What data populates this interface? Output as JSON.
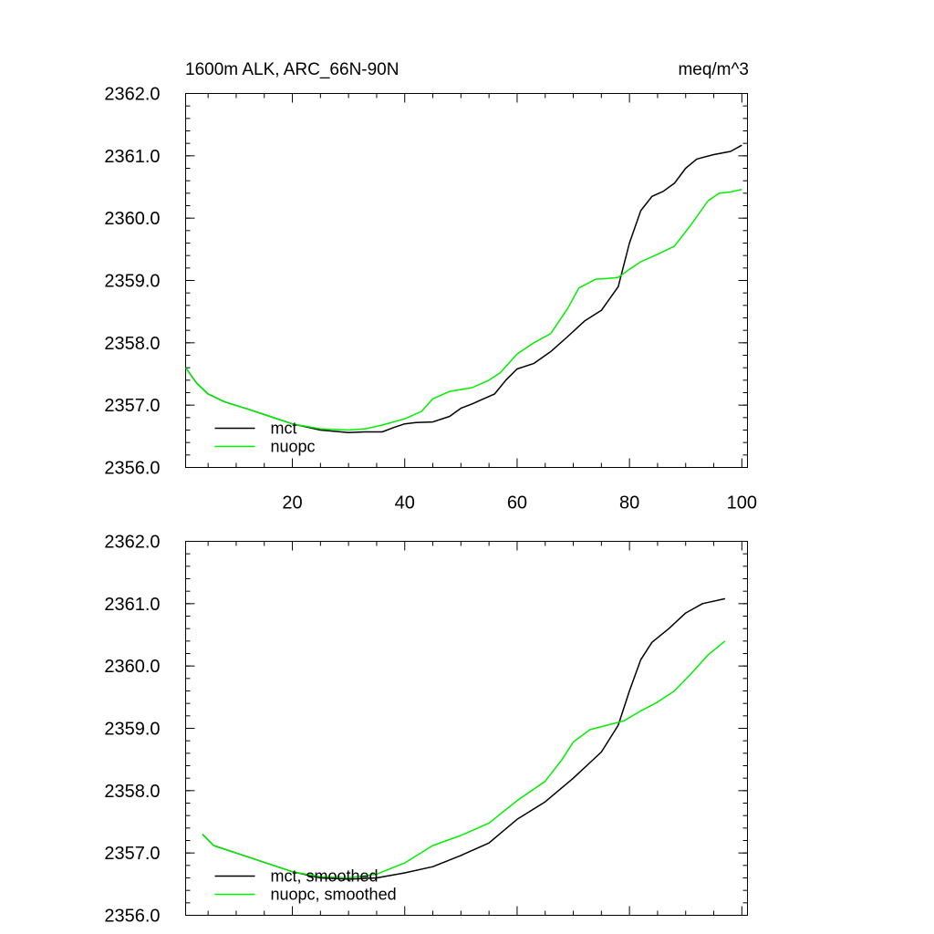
{
  "chart_data": [
    {
      "type": "line",
      "title_left": "1600m ALK, ARC_66N-90N",
      "title_right": "meq/m^3",
      "xlim": [
        1,
        101
      ],
      "ylim": [
        2356.0,
        2362.0
      ],
      "x_ticks": [
        20,
        40,
        60,
        80,
        100
      ],
      "x_tick_labels": [
        "20",
        "40",
        "60",
        "80",
        "100"
      ],
      "y_ticks": [
        2356.0,
        2357.0,
        2358.0,
        2359.0,
        2360.0,
        2361.0,
        2362.0
      ],
      "y_tick_labels": [
        "2356.0",
        "2357.0",
        "2358.0",
        "2359.0",
        "2360.0",
        "2361.0",
        "2362.0"
      ],
      "legend_position": "bottom-left",
      "series": [
        {
          "name": "mct",
          "color": "#000000",
          "points": [
            [
              1,
              2357.6
            ],
            [
              3,
              2357.35
            ],
            [
              5,
              2357.18
            ],
            [
              8,
              2357.05
            ],
            [
              12,
              2356.94
            ],
            [
              16,
              2356.82
            ],
            [
              20,
              2356.7
            ],
            [
              25,
              2356.6
            ],
            [
              30,
              2356.56
            ],
            [
              33,
              2356.57
            ],
            [
              36,
              2356.57
            ],
            [
              38,
              2356.64
            ],
            [
              40,
              2356.7
            ],
            [
              42,
              2356.72
            ],
            [
              45,
              2356.73
            ],
            [
              48,
              2356.82
            ],
            [
              50,
              2356.95
            ],
            [
              52,
              2357.02
            ],
            [
              54,
              2357.1
            ],
            [
              56,
              2357.18
            ],
            [
              58,
              2357.4
            ],
            [
              60,
              2357.58
            ],
            [
              63,
              2357.67
            ],
            [
              66,
              2357.86
            ],
            [
              69,
              2358.1
            ],
            [
              72,
              2358.35
            ],
            [
              75,
              2358.52
            ],
            [
              78,
              2358.9
            ],
            [
              80,
              2359.6
            ],
            [
              82,
              2360.12
            ],
            [
              84,
              2360.35
            ],
            [
              86,
              2360.43
            ],
            [
              88,
              2360.56
            ],
            [
              90,
              2360.8
            ],
            [
              92,
              2360.95
            ],
            [
              95,
              2361.02
            ],
            [
              98,
              2361.07
            ],
            [
              100,
              2361.17
            ]
          ]
        },
        {
          "name": "nuopc",
          "color": "#00ee00",
          "points": [
            [
              1,
              2357.6
            ],
            [
              3,
              2357.35
            ],
            [
              5,
              2357.18
            ],
            [
              8,
              2357.05
            ],
            [
              12,
              2356.94
            ],
            [
              16,
              2356.82
            ],
            [
              20,
              2356.7
            ],
            [
              25,
              2356.62
            ],
            [
              30,
              2356.6
            ],
            [
              33,
              2356.62
            ],
            [
              36,
              2356.68
            ],
            [
              40,
              2356.78
            ],
            [
              43,
              2356.9
            ],
            [
              45,
              2357.1
            ],
            [
              48,
              2357.22
            ],
            [
              52,
              2357.28
            ],
            [
              55,
              2357.4
            ],
            [
              57,
              2357.52
            ],
            [
              60,
              2357.82
            ],
            [
              63,
              2358.0
            ],
            [
              66,
              2358.15
            ],
            [
              69,
              2358.55
            ],
            [
              71,
              2358.88
            ],
            [
              74,
              2359.02
            ],
            [
              76,
              2359.03
            ],
            [
              78,
              2359.05
            ],
            [
              80,
              2359.18
            ],
            [
              82,
              2359.3
            ],
            [
              85,
              2359.42
            ],
            [
              88,
              2359.55
            ],
            [
              91,
              2359.9
            ],
            [
              94,
              2360.28
            ],
            [
              96,
              2360.4
            ],
            [
              98,
              2360.42
            ],
            [
              100,
              2360.46
            ]
          ]
        }
      ],
      "legend": [
        {
          "label": "mct",
          "color": "#000000"
        },
        {
          "label": "nuopc",
          "color": "#00ee00"
        }
      ]
    },
    {
      "type": "line",
      "xlim": [
        1,
        101
      ],
      "ylim": [
        2356.0,
        2362.0
      ],
      "x_ticks": [
        20,
        40,
        60,
        80,
        100
      ],
      "y_ticks": [
        2356.0,
        2357.0,
        2358.0,
        2359.0,
        2360.0,
        2361.0,
        2362.0
      ],
      "y_tick_labels": [
        "2356.0",
        "2357.0",
        "2358.0",
        "2359.0",
        "2360.0",
        "2361.0",
        "2362.0"
      ],
      "legend_position": "bottom-left",
      "series": [
        {
          "name": "mct, smoothed",
          "color": "#000000",
          "points": [
            [
              4,
              2357.3
            ],
            [
              6,
              2357.12
            ],
            [
              10,
              2357.0
            ],
            [
              15,
              2356.85
            ],
            [
              20,
              2356.7
            ],
            [
              25,
              2356.6
            ],
            [
              30,
              2356.58
            ],
            [
              35,
              2356.6
            ],
            [
              40,
              2356.68
            ],
            [
              45,
              2356.78
            ],
            [
              50,
              2356.96
            ],
            [
              55,
              2357.16
            ],
            [
              60,
              2357.54
            ],
            [
              65,
              2357.82
            ],
            [
              70,
              2358.2
            ],
            [
              75,
              2358.62
            ],
            [
              78,
              2359.05
            ],
            [
              80,
              2359.6
            ],
            [
              82,
              2360.1
            ],
            [
              84,
              2360.38
            ],
            [
              87,
              2360.6
            ],
            [
              90,
              2360.85
            ],
            [
              93,
              2361.0
            ],
            [
              97,
              2361.08
            ]
          ]
        },
        {
          "name": "nuopc, smoothed",
          "color": "#00ee00",
          "points": [
            [
              4,
              2357.3
            ],
            [
              6,
              2357.12
            ],
            [
              10,
              2357.0
            ],
            [
              15,
              2356.85
            ],
            [
              20,
              2356.7
            ],
            [
              25,
              2356.62
            ],
            [
              30,
              2356.6
            ],
            [
              35,
              2356.66
            ],
            [
              40,
              2356.84
            ],
            [
              45,
              2357.12
            ],
            [
              50,
              2357.28
            ],
            [
              55,
              2357.48
            ],
            [
              60,
              2357.84
            ],
            [
              65,
              2358.15
            ],
            [
              68,
              2358.5
            ],
            [
              70,
              2358.78
            ],
            [
              73,
              2358.98
            ],
            [
              76,
              2359.05
            ],
            [
              79,
              2359.12
            ],
            [
              82,
              2359.28
            ],
            [
              85,
              2359.42
            ],
            [
              88,
              2359.6
            ],
            [
              91,
              2359.88
            ],
            [
              94,
              2360.18
            ],
            [
              97,
              2360.4
            ]
          ]
        }
      ],
      "legend": [
        {
          "label": "mct, smoothed",
          "color": "#000000"
        },
        {
          "label": "nuopc, smoothed",
          "color": "#00ee00"
        }
      ]
    }
  ]
}
